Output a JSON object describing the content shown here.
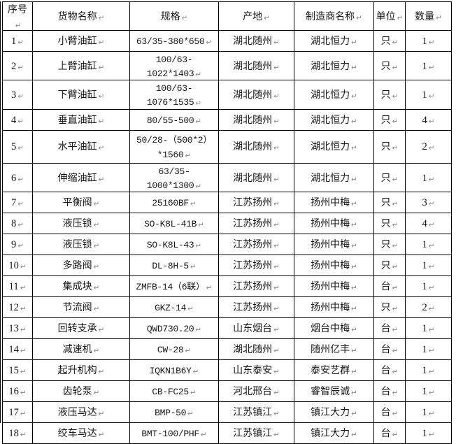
{
  "page": {
    "background": "#ffffff"
  },
  "table": {
    "paragraph_mark": "↵",
    "colors": {
      "border": "#000000",
      "text": "#161616",
      "mark": "#8e8e8e",
      "background": "#ffffff"
    },
    "columns": [
      {
        "key": "index",
        "label": "序号"
      },
      {
        "key": "name",
        "label": "货物名称"
      },
      {
        "key": "spec",
        "label": "规格"
      },
      {
        "key": "origin",
        "label": "产地"
      },
      {
        "key": "manufacturer",
        "label": "制造商名称"
      },
      {
        "key": "unit",
        "label": "单位"
      },
      {
        "key": "qty",
        "label": "数量"
      }
    ],
    "rows": [
      {
        "index": "1",
        "name": "小臂油缸",
        "spec": "63/35-380*650",
        "origin": "湖北随州",
        "manufacturer": "湖北恒力",
        "unit": "只",
        "qty": "1"
      },
      {
        "index": "2",
        "name": "上臂油缸",
        "spec": "100/63-1022*1403",
        "origin": "湖北随州",
        "manufacturer": "湖北恒力",
        "unit": "只",
        "qty": "1"
      },
      {
        "index": "3",
        "name": "下臂油缸",
        "spec": "100/63-1076*1535",
        "origin": "湖北随州",
        "manufacturer": "湖北恒力",
        "unit": "只",
        "qty": "1"
      },
      {
        "index": "4",
        "name": "垂直油缸",
        "spec": "80/55-500",
        "origin": "湖北随州",
        "manufacturer": "湖北恒力",
        "unit": "只",
        "qty": "4"
      },
      {
        "index": "5",
        "name": "水平油缸",
        "spec": "50/28-（500*2）\n*1560",
        "origin": "湖北随州",
        "manufacturer": "湖北恒力",
        "unit": "只",
        "qty": "2"
      },
      {
        "index": "6",
        "name": "伸缩油缸",
        "spec": "63/35-1000*1300",
        "origin": "湖北随州",
        "manufacturer": "湖北恒力",
        "unit": "只",
        "qty": "1"
      },
      {
        "index": "7",
        "name": "平衡阀",
        "spec": "25160BF",
        "origin": "江苏扬州",
        "manufacturer": "扬州中梅",
        "unit": "只",
        "qty": "3"
      },
      {
        "index": "8",
        "name": "液压锁",
        "spec": "SO-K8L-41B",
        "origin": "江苏扬州",
        "manufacturer": "扬州中梅",
        "unit": "只",
        "qty": "4"
      },
      {
        "index": "9",
        "name": "液压锁",
        "spec": "SO-K8L-43",
        "origin": "江苏扬州",
        "manufacturer": "扬州中梅",
        "unit": "只",
        "qty": "1"
      },
      {
        "index": "10",
        "name": "多路阀",
        "spec": "DL-8H-5",
        "origin": "江苏扬州",
        "manufacturer": "扬州中梅",
        "unit": "只",
        "qty": "1"
      },
      {
        "index": "11",
        "name": "集成块",
        "spec": "ZMFB-14（6联）",
        "origin": "江苏扬州",
        "manufacturer": "扬州中梅",
        "unit": "台",
        "qty": "1"
      },
      {
        "index": "12",
        "name": "节流阀",
        "spec": "GKZ-14",
        "origin": "江苏扬州",
        "manufacturer": "扬州中梅",
        "unit": "只",
        "qty": "2"
      },
      {
        "index": "13",
        "name": "回转支承",
        "spec": "QWD730.20",
        "origin": "山东烟台",
        "manufacturer": "烟台中梅",
        "unit": "台",
        "qty": "1"
      },
      {
        "index": "14",
        "name": "减速机",
        "spec": "CW-28",
        "origin": "湖北随州",
        "manufacturer": "随州亿丰",
        "unit": "台",
        "qty": "1"
      },
      {
        "index": "15",
        "name": "起升机构",
        "spec": "IQKN1B6Y",
        "origin": "山东泰安",
        "manufacturer": "泰安艺群",
        "unit": "台",
        "qty": "1"
      },
      {
        "index": "16",
        "name": "齿轮泵",
        "spec": "CB-FC25",
        "origin": "河北邢台",
        "manufacturer": "睿智辰诚",
        "unit": "台",
        "qty": "1"
      },
      {
        "index": "17",
        "name": "液压马达",
        "spec": "BMP-50",
        "origin": "江苏镇江",
        "manufacturer": "镇江大力",
        "unit": "台",
        "qty": "1"
      },
      {
        "index": "18",
        "name": "绞车马达",
        "spec": "BMT-100/PHF",
        "origin": "江苏镇江",
        "manufacturer": "镇江大力",
        "unit": "台",
        "qty": "1"
      }
    ]
  }
}
